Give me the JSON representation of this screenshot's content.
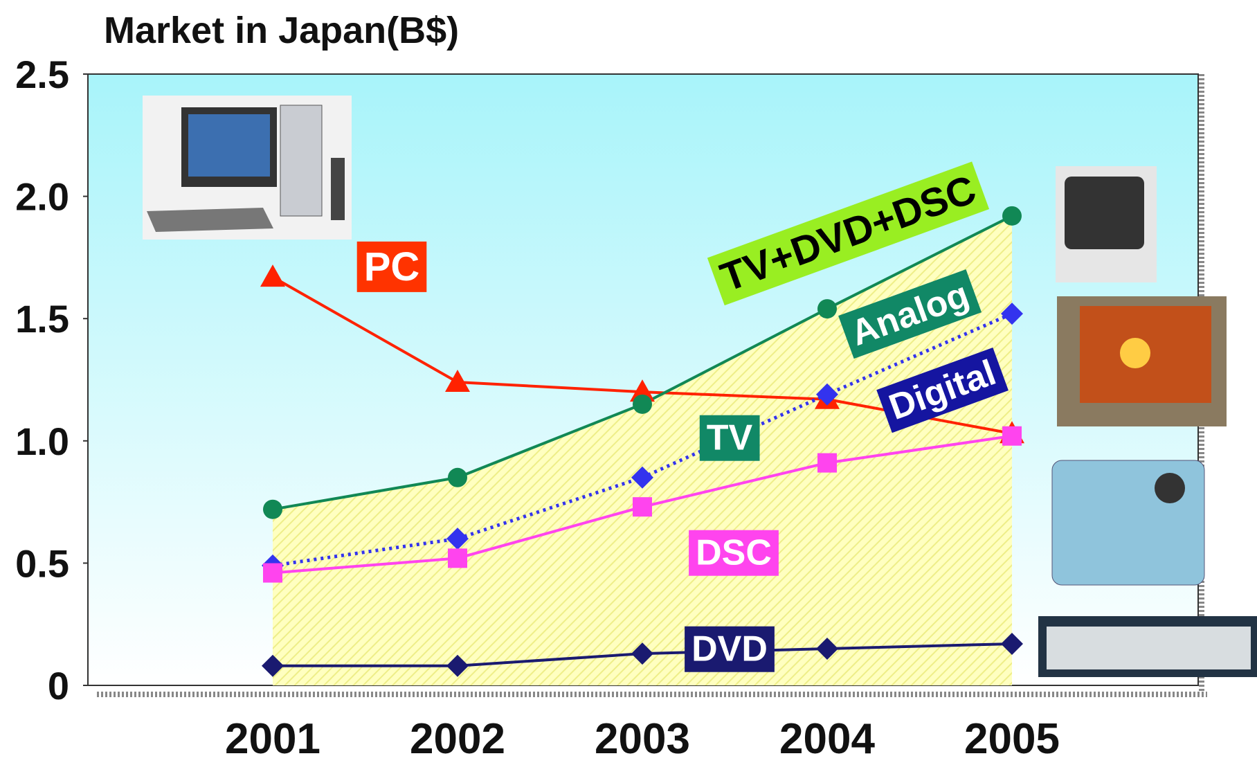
{
  "chart_data": {
    "type": "line",
    "title": "Market in Japan(B$)",
    "categories": [
      "2001",
      "2002",
      "2003",
      "2004",
      "2005"
    ],
    "series": [
      {
        "name": "PC",
        "color": "#ff2200",
        "marker": "triangle",
        "label_color": "#ff3300",
        "values": [
          1.67,
          1.24,
          1.2,
          1.17,
          1.03
        ]
      },
      {
        "name": "TV+DVD+DSC",
        "color": "#118855",
        "marker": "circle",
        "area": true,
        "label_color": "#99ee22",
        "values": [
          0.72,
          0.85,
          1.15,
          1.54,
          1.92
        ]
      },
      {
        "name": "Digital",
        "color": "#3333ee",
        "marker": "diamond",
        "dashed": true,
        "label_color": "#1515a0",
        "values": [
          0.49,
          0.6,
          0.85,
          1.19,
          1.52
        ]
      },
      {
        "name": "DSC",
        "color": "#ff44ee",
        "marker": "square",
        "label_color": "#ff44ee",
        "values": [
          0.46,
          0.52,
          0.73,
          0.91,
          1.02
        ]
      },
      {
        "name": "DVD",
        "color": "#1a1a70",
        "marker": "diamond",
        "label_color": "#1a1a70",
        "values": [
          0.08,
          0.08,
          0.13,
          0.15,
          0.17
        ]
      }
    ],
    "annotations": [
      "Analog",
      "TV"
    ],
    "ylim": [
      0,
      2.5
    ],
    "yticks": [
      0,
      0.5,
      {
        "value": 1,
        "label": "1.0"
      },
      1.5,
      {
        "value": 2,
        "label": "2.0"
      },
      2.5
    ]
  }
}
